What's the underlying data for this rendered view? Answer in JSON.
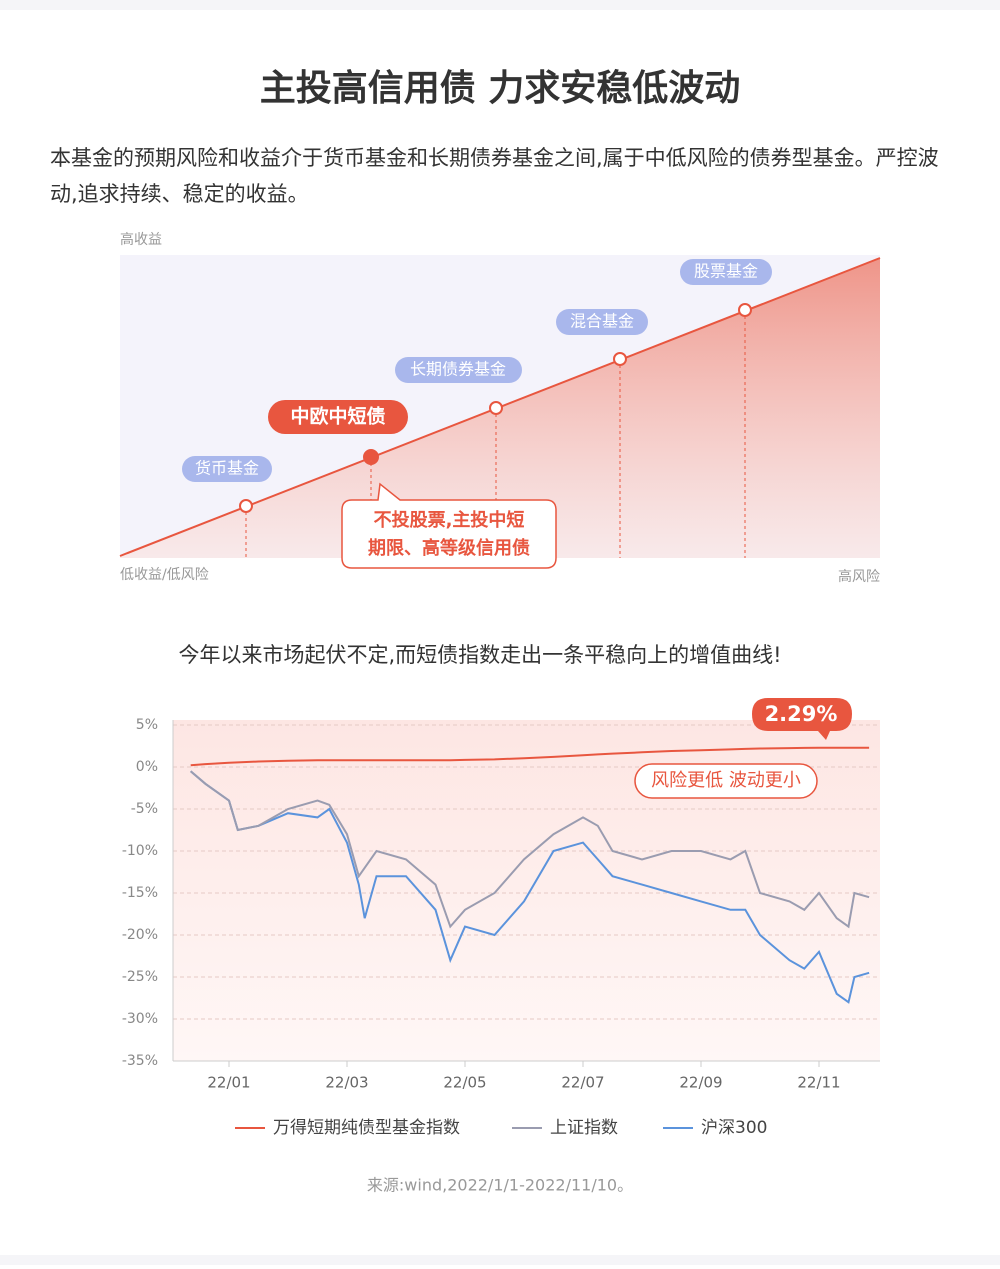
{
  "header": {
    "title": "主投高信用债 力求安稳低波动"
  },
  "intro": {
    "text": "本基金的预期风险和收益介于货币基金和长期债券基金之间,属于中低风险的债券型基金。严控波动,追求持续、稳定的收益。"
  },
  "risk_diagram": {
    "y_top_label": "高收益",
    "x_left_label": "低收益/低风险",
    "x_right_label": "高风险",
    "points": [
      {
        "label": "货币基金"
      },
      {
        "label": "中欧中短债"
      },
      {
        "label": "长期债券基金"
      },
      {
        "label": "混合基金"
      },
      {
        "label": "股票基金"
      }
    ],
    "callout": [
      "不投股票,主投中短",
      "期限、高等级信用债"
    ]
  },
  "chart_intro": "今年以来市场起伏不定,而短债指数走出一条平稳向上的增值曲线!",
  "chart_data": {
    "type": "line",
    "x": [
      0.35,
      0.6,
      1,
      1.15,
      1.5,
      2,
      2.5,
      2.7,
      3,
      3.2,
      3.3,
      3.5,
      4,
      4.5,
      4.75,
      5,
      5.5,
      6,
      6.5,
      7,
      7.25,
      7.5,
      8,
      8.5,
      9,
      9.5,
      9.75,
      10,
      10.5,
      10.75,
      11,
      11.3,
      11.5,
      11.6,
      11.85
    ],
    "series": [
      {
        "name": "万得短期纯债型基金指数",
        "color": "#e8563f",
        "values": [
          0.2,
          0.35,
          0.5,
          0.55,
          0.65,
          0.75,
          0.8,
          0.8,
          0.8,
          0.8,
          0.8,
          0.8,
          0.8,
          0.8,
          0.8,
          0.85,
          0.9,
          1.05,
          1.2,
          1.4,
          1.5,
          1.6,
          1.75,
          1.9,
          2.0,
          2.1,
          2.15,
          2.2,
          2.25,
          2.27,
          2.28,
          2.29,
          2.29,
          2.29,
          2.29
        ]
      },
      {
        "name": "上证指数",
        "color": "#9a9cb0",
        "values": [
          -0.5,
          -2,
          -4,
          -7.5,
          -7,
          -5,
          -4,
          -4.5,
          -8,
          -13,
          -12,
          -10,
          -11,
          -14,
          -19,
          -17,
          -15,
          -11,
          -8,
          -6,
          -7,
          -10,
          -11,
          -10,
          -10,
          -11,
          -10,
          -15,
          -16,
          -17,
          -15,
          -18,
          -19,
          -15,
          -15.5
        ]
      },
      {
        "name": "沪深300",
        "color": "#5b93dc",
        "values": [
          -0.5,
          -2,
          -4,
          -7.5,
          -7,
          -5.5,
          -6,
          -5,
          -9,
          -14,
          -18,
          -13,
          -13,
          -17,
          -23,
          -19,
          -20,
          -16,
          -10,
          -9,
          -11,
          -13,
          -14,
          -15,
          -16,
          -17,
          -17,
          -20,
          -23,
          -24,
          -22,
          -27,
          -28,
          -25,
          -24.5
        ]
      }
    ],
    "xlim": [
      0,
      12
    ],
    "xticks": [
      {
        "value": 1,
        "label": "22/01"
      },
      {
        "value": 3,
        "label": "22/03"
      },
      {
        "value": 5,
        "label": "22/05"
      },
      {
        "value": 7,
        "label": "22/07"
      },
      {
        "value": 9,
        "label": "22/09"
      },
      {
        "value": 11,
        "label": "22/11"
      }
    ],
    "ylim": [
      -35,
      5
    ],
    "yticks": [
      {
        "value": 5,
        "label": "5%"
      },
      {
        "value": 0,
        "label": "0%"
      },
      {
        "value": -5,
        "label": "-5%"
      },
      {
        "value": -10,
        "label": "-10%"
      },
      {
        "value": -15,
        "label": "-15%"
      },
      {
        "value": -20,
        "label": "-20%"
      },
      {
        "value": -25,
        "label": "-25%"
      },
      {
        "value": -30,
        "label": "-30%"
      },
      {
        "value": -35,
        "label": "-35%"
      }
    ],
    "grid": true,
    "annotations": [
      "2.29%",
      "风险更低 波动更小"
    ]
  },
  "source": "来源:wind,2022/1/1-2022/11/10。"
}
